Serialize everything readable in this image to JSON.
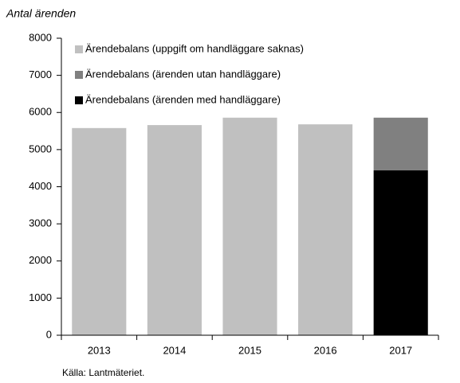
{
  "chart_data": {
    "type": "bar",
    "stacked": true,
    "y_label": "Antal ärenden",
    "source": "Källa: Lantmäteriet.",
    "categories": [
      "2013",
      "2014",
      "2015",
      "2016",
      "2017"
    ],
    "series": [
      {
        "name": "Ärendebalans (ärenden med handläggare)",
        "color": "#000000",
        "values": [
          null,
          null,
          null,
          null,
          4440
        ]
      },
      {
        "name": "Ärendebalans (ärenden utan handläggare)",
        "color": "#808080",
        "values": [
          null,
          null,
          null,
          null,
          1420
        ]
      },
      {
        "name": "Ärendebalans (uppgift om handläggare saknas)",
        "color": "#c0c0c0",
        "values": [
          5580,
          5660,
          5860,
          5680,
          null
        ]
      }
    ],
    "legend_order": [
      2,
      1,
      0
    ],
    "legend": "upper left",
    "ylim": [
      0,
      8000
    ],
    "yticks": [
      0,
      1000,
      2000,
      3000,
      4000,
      5000,
      6000,
      7000,
      8000
    ]
  }
}
